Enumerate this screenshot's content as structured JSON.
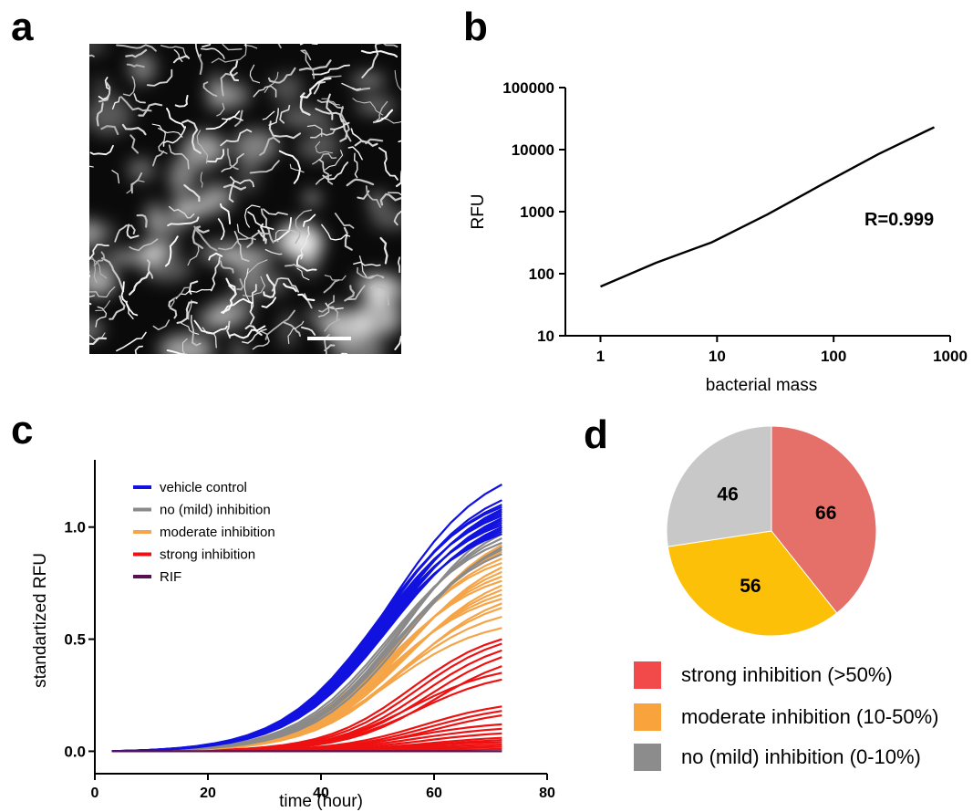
{
  "panels": {
    "a": {
      "letter": "a"
    },
    "b": {
      "letter": "b"
    },
    "c": {
      "letter": "c"
    },
    "d": {
      "letter": "d"
    }
  },
  "colors": {
    "vehicle": "#1212e0",
    "none": "#8a8a8a",
    "moderate": "#f5a447",
    "strong": "#ee1111",
    "rif": "#5a1050",
    "pie_strong": "#e5706a",
    "pie_moderate": "#fdc008",
    "pie_none": "#c8c8c8",
    "legend_strong": "#f24a4a",
    "legend_moderate": "#f9a33d",
    "legend_none": "#8c8c8c"
  },
  "chart_data": [
    {
      "panel": "a",
      "type": "other",
      "description_visible": "fluorescence micrograph with scale bar"
    },
    {
      "panel": "b",
      "type": "line",
      "xscale": "log",
      "yscale": "log",
      "xlabel": "bacterial mass",
      "ylabel": "RFU",
      "xlim": [
        0.5,
        1000
      ],
      "ylim": [
        10,
        100000
      ],
      "xticks": [
        1,
        10,
        100,
        1000
      ],
      "yticks": [
        10,
        100,
        1000,
        10000,
        100000
      ],
      "xtick_labels": [
        "1",
        "10",
        "100",
        "1000"
      ],
      "ytick_labels": [
        "10",
        "100",
        "1000",
        "10000",
        "100000"
      ],
      "series": [
        {
          "x": [
            1,
            3,
            9,
            27,
            81,
            243,
            729
          ],
          "y": [
            62,
            150,
            320,
            900,
            2800,
            8500,
            23000
          ]
        }
      ],
      "annotation": "R=0.999"
    },
    {
      "panel": "c",
      "type": "line",
      "xlabel": "time (hour)",
      "ylabel": "standartized RFU",
      "xlim": [
        0,
        80
      ],
      "ylim": [
        -0.1,
        1.3
      ],
      "xticks": [
        0,
        20,
        40,
        60,
        80
      ],
      "xtick_labels": [
        "0",
        "20",
        "40",
        "60",
        "80"
      ],
      "yticks": [
        0.0,
        0.5,
        1.0
      ],
      "ytick_labels": [
        "0.0",
        "0.5",
        "1.0"
      ],
      "legend_position": "top-left",
      "time_points": [
        3,
        6,
        9,
        12,
        15,
        18,
        21,
        24,
        27,
        30,
        33,
        36,
        39,
        42,
        45,
        48,
        51,
        54,
        57,
        60,
        63,
        66,
        69,
        72
      ],
      "groups": [
        {
          "name": "vehicle control",
          "color_key": "vehicle",
          "finals": [
            1.19,
            1.12,
            1.1,
            1.09,
            1.08,
            1.07,
            1.06,
            1.05,
            1.04,
            1.03,
            1.02,
            1.01,
            1.0,
            0.99,
            0.98,
            0.97
          ]
        },
        {
          "name": "no (mild) inhibition",
          "color_key": "none",
          "finals": [
            1.0,
            0.97,
            0.95,
            0.93,
            0.91,
            0.9,
            0.88
          ]
        },
        {
          "name": "moderate inhibition",
          "color_key": "moderate",
          "finals": [
            0.92,
            0.89,
            0.86,
            0.84,
            0.82,
            0.8,
            0.78,
            0.76,
            0.74,
            0.72,
            0.7,
            0.68,
            0.66,
            0.64,
            0.6,
            0.55
          ]
        },
        {
          "name": "strong inhibition",
          "color_key": "strong",
          "finals": [
            0.5,
            0.48,
            0.45,
            0.42,
            0.38,
            0.35,
            0.32,
            0.2,
            0.18,
            0.16,
            0.12,
            0.1,
            0.08,
            0.06,
            0.05,
            0.04,
            0.03,
            0.02,
            0.02,
            0.01
          ]
        },
        {
          "name": "RIF",
          "color_key": "rif",
          "finals": [
            0.0
          ]
        }
      ]
    },
    {
      "panel": "d",
      "type": "pie",
      "slices": [
        {
          "label": "66",
          "value": 66,
          "color_key": "pie_strong"
        },
        {
          "label": "56",
          "value": 56,
          "color_key": "pie_moderate"
        },
        {
          "label": "46",
          "value": 46,
          "color_key": "pie_none"
        }
      ],
      "legend": [
        {
          "label": "strong inhibition (>50%)",
          "color_key": "legend_strong"
        },
        {
          "label": "moderate inhibition (10-50%)",
          "color_key": "legend_moderate"
        },
        {
          "label": "no (mild) inhibition (0-10%)",
          "color_key": "legend_none"
        }
      ]
    }
  ]
}
